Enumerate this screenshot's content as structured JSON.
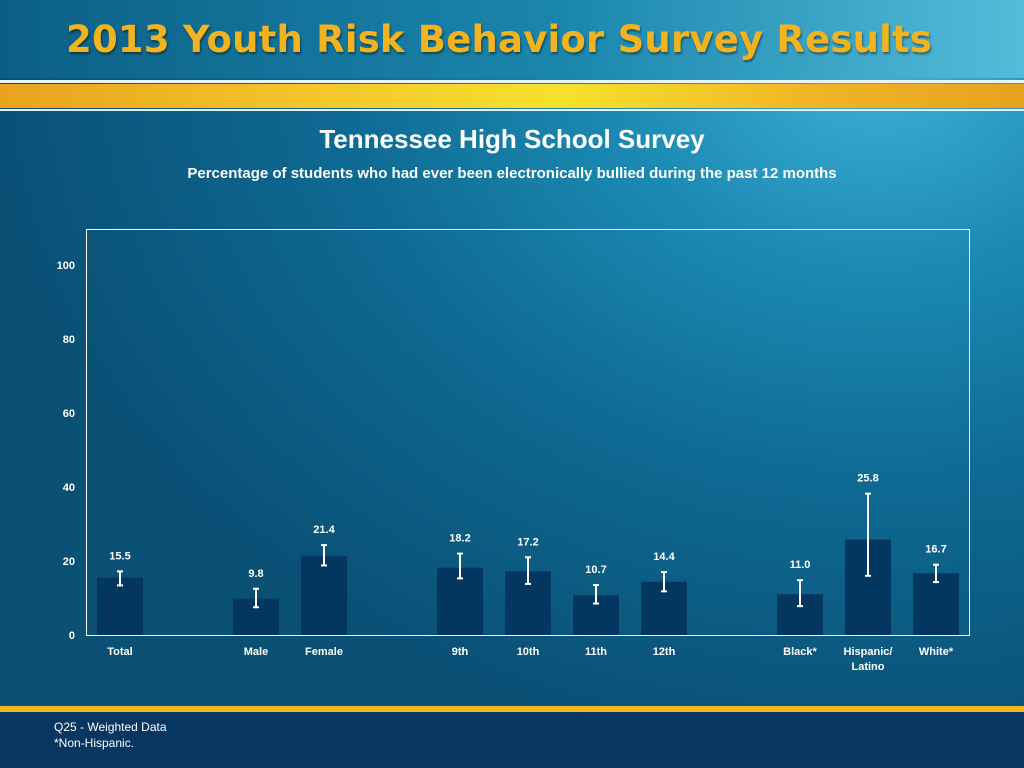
{
  "slide": {
    "title": "2013 Youth Risk Behavior Survey Results",
    "colors": {
      "gold": "#f1b320",
      "bar": "#04375f",
      "error_bar": "#ffffff",
      "frame": "#ffffff"
    }
  },
  "chart_data": {
    "type": "bar",
    "title": "Tennessee High School Survey",
    "subtitle": "Percentage of students who had ever been electronically bullied during the past 12 months",
    "xlabel": "",
    "ylabel": "",
    "ylim": [
      0,
      100
    ],
    "yticks": [
      0,
      20,
      40,
      60,
      80,
      100
    ],
    "grid": false,
    "categories": [
      "Total",
      "Male",
      "Female",
      "9th",
      "10th",
      "11th",
      "12th",
      "Black*",
      "Hispanic/\nLatino",
      "White*"
    ],
    "values": [
      15.5,
      9.8,
      21.4,
      18.2,
      17.2,
      10.7,
      14.4,
      11.0,
      25.8,
      16.7
    ],
    "value_labels": [
      "15.5",
      "9.8",
      "21.4",
      "18.2",
      "17.2",
      "10.7",
      "14.4",
      "11.0",
      "25.8",
      "16.7"
    ],
    "ci_lower": [
      13.4,
      7.5,
      18.8,
      15.3,
      13.8,
      8.5,
      11.8,
      7.8,
      16.0,
      14.3
    ],
    "ci_upper": [
      17.2,
      12.5,
      24.3,
      22.0,
      21.0,
      13.5,
      17.0,
      14.8,
      38.2,
      19.0
    ],
    "groups": [
      [
        "Total"
      ],
      [
        "Male",
        "Female"
      ],
      [
        "9th",
        "10th",
        "11th",
        "12th"
      ],
      [
        "Black*",
        "Hispanic/\nLatino",
        "White*"
      ]
    ]
  },
  "footer": {
    "notes": [
      "Q25 - Weighted Data",
      "*Non-Hispanic."
    ]
  }
}
